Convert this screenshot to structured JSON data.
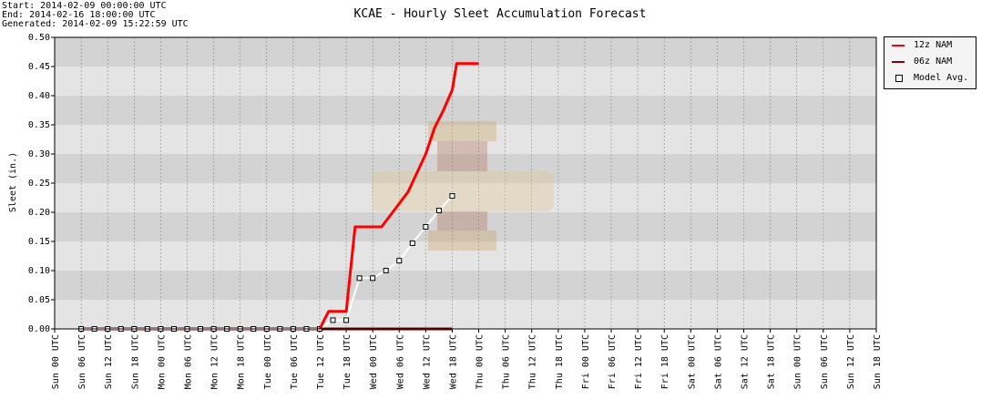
{
  "header": {
    "start": "Start: 2014-02-09 00:00:00 UTC",
    "end": "End: 2014-02-16 18:00:00 UTC",
    "generated": "Generated: 2014-02-09 15:22:59 UTC"
  },
  "colors": {
    "nam12": "#ff0000",
    "nam06": "#880000",
    "avg_line": "#ffffff",
    "avg_marker_fill": "#ffffff",
    "avg_marker_stroke": "#000000",
    "band_dark": "#d3d3d3",
    "band_light": "#e4e4e4"
  },
  "chart_data": {
    "type": "line",
    "title": "KCAE - Hourly Sleet Accumulation Forecast",
    "ylabel": "Sleet (in.)",
    "xlabel": "",
    "ylim": [
      0,
      0.5
    ],
    "yticks": [
      "0.00",
      "0.05",
      "0.10",
      "0.15",
      "0.20",
      "0.25",
      "0.30",
      "0.35",
      "0.40",
      "0.45",
      "0.50"
    ],
    "xlim": [
      "2014-02-09 00:00",
      "2014-02-16 18:00"
    ],
    "xticks": [
      "Sun 00 UTC",
      "Sun 06 UTC",
      "Sun 12 UTC",
      "Sun 18 UTC",
      "Mon 00 UTC",
      "Mon 06 UTC",
      "Mon 12 UTC",
      "Mon 18 UTC",
      "Tue 00 UTC",
      "Tue 06 UTC",
      "Tue 12 UTC",
      "Tue 18 UTC",
      "Wed 00 UTC",
      "Wed 06 UTC",
      "Wed 12 UTC",
      "Wed 18 UTC",
      "Thu 00 UTC",
      "Thu 06 UTC",
      "Thu 12 UTC",
      "Thu 18 UTC",
      "Fri 00 UTC",
      "Fri 06 UTC",
      "Fri 12 UTC",
      "Fri 18 UTC",
      "Sat 00 UTC",
      "Sat 06 UTC",
      "Sat 12 UTC",
      "Sat 18 UTC",
      "Sun 00 UTC",
      "Sun 06 UTC",
      "Sun 12 UTC",
      "Sun 18 UTC"
    ],
    "grid": true,
    "legend_position": "outside-right-top",
    "series": [
      {
        "name": "12z NAM",
        "x": [
          "2014-02-11 12:00",
          "2014-02-11 14:00",
          "2014-02-11 18:00",
          "2014-02-11 20:00",
          "2014-02-12 00:00",
          "2014-02-12 02:00",
          "2014-02-12 06:00",
          "2014-02-12 08:00",
          "2014-02-12 12:00",
          "2014-02-12 14:00",
          "2014-02-12 16:00",
          "2014-02-12 18:00",
          "2014-02-12 19:00",
          "2014-02-13 00:00"
        ],
        "values": [
          0.0,
          0.03,
          0.03,
          0.175,
          0.175,
          0.175,
          0.215,
          0.235,
          0.3,
          0.345,
          0.375,
          0.41,
          0.455,
          0.455
        ]
      },
      {
        "name": "06z NAM",
        "x": [
          "2014-02-09 06:00",
          "2014-02-12 18:00"
        ],
        "values": [
          0.0,
          0.0
        ]
      },
      {
        "name": "Model Avg.",
        "x": [
          "2014-02-09 06:00",
          "2014-02-09 09:00",
          "2014-02-09 12:00",
          "2014-02-09 15:00",
          "2014-02-09 18:00",
          "2014-02-09 21:00",
          "2014-02-10 00:00",
          "2014-02-10 03:00",
          "2014-02-10 06:00",
          "2014-02-10 09:00",
          "2014-02-10 12:00",
          "2014-02-10 15:00",
          "2014-02-10 18:00",
          "2014-02-10 21:00",
          "2014-02-11 00:00",
          "2014-02-11 03:00",
          "2014-02-11 06:00",
          "2014-02-11 09:00",
          "2014-02-11 12:00",
          "2014-02-11 15:00",
          "2014-02-11 18:00",
          "2014-02-11 21:00",
          "2014-02-12 00:00",
          "2014-02-12 03:00",
          "2014-02-12 06:00",
          "2014-02-12 09:00",
          "2014-02-12 12:00",
          "2014-02-12 15:00",
          "2014-02-12 18:00"
        ],
        "values": [
          0,
          0,
          0,
          0,
          0,
          0,
          0,
          0,
          0,
          0,
          0,
          0,
          0,
          0,
          0,
          0,
          0,
          0,
          0,
          0.015,
          0.015,
          0.087,
          0.087,
          0.1,
          0.117,
          0.147,
          0.175,
          0.203,
          0.228
        ]
      }
    ]
  }
}
